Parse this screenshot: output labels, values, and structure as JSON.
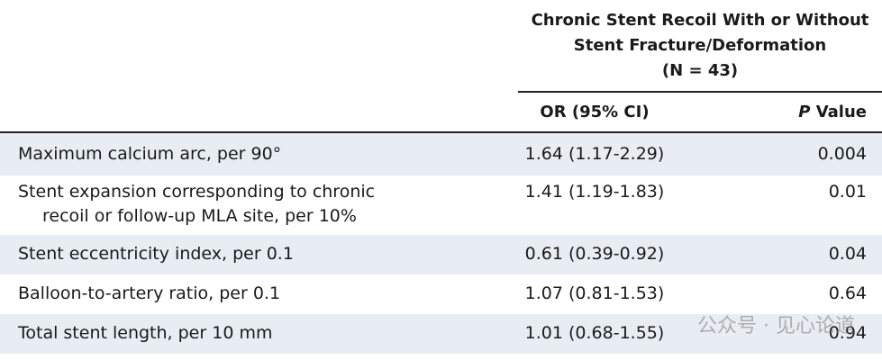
{
  "table": {
    "group_header": [
      "Chronic Stent Recoil With or Without",
      "Stent Fracture/Deformation",
      "(N = 43)"
    ],
    "columns": {
      "or": "OR (95% CI)",
      "p_italic": "P",
      "p_rest": "Value"
    },
    "rows": [
      {
        "label": [
          "Maximum calcium arc, per 90°"
        ],
        "or": "1.64 (1.17-2.29)",
        "p": "0.004"
      },
      {
        "label": [
          "Stent expansion corresponding to chronic",
          "recoil or follow-up MLA site, per 10%"
        ],
        "or": "1.41 (1.19-1.83)",
        "p": "0.01"
      },
      {
        "label": [
          "Stent eccentricity index, per 0.1"
        ],
        "or": "0.61 (0.39-0.92)",
        "p": "0.04"
      },
      {
        "label": [
          "Balloon-to-artery ratio, per 0.1"
        ],
        "or": "1.07 (0.81-1.53)",
        "p": "0.64"
      },
      {
        "label": [
          "Total stent length, per 10 mm"
        ],
        "or": "1.01 (0.68-1.55)",
        "p": "0.94"
      }
    ],
    "watermark": "公众号 · 见心论道"
  }
}
